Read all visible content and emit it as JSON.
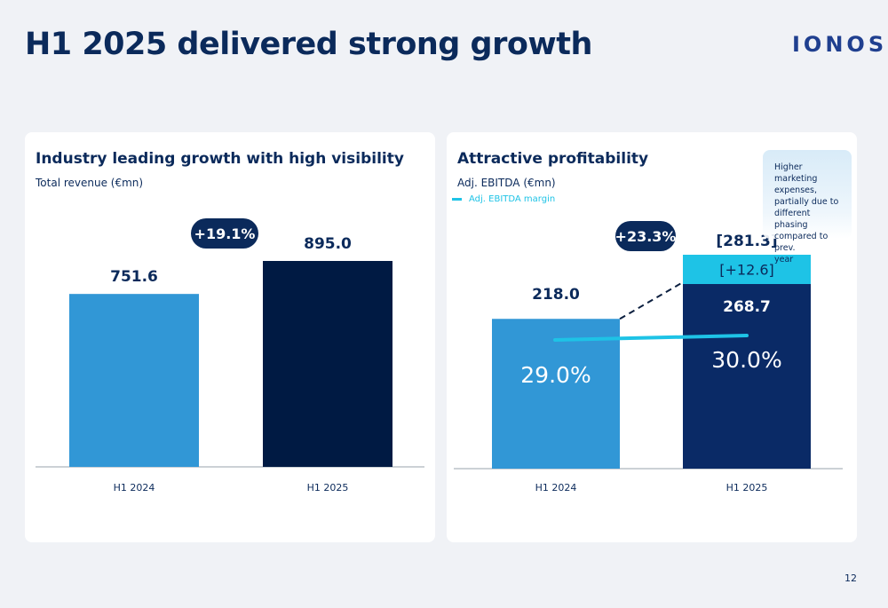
{
  "slide": {
    "title": "H1 2025 delivered strong growth",
    "logo": "IONOS",
    "page_number": "12"
  },
  "colors": {
    "background": "#f0f2f6",
    "bar_light": "#3197d6",
    "bar_dark": "#001a43",
    "bar_navy": "#0a2a66",
    "accent_cyan": "#1ec3e6",
    "pill": "#0b2a5b"
  },
  "chart_data": [
    {
      "type": "bar",
      "title": "Industry leading growth with high visibility",
      "subtitle": "Total revenue (€mn)",
      "categories": [
        "H1 2024",
        "H1 2025"
      ],
      "values": [
        751.6,
        895.0
      ],
      "value_labels": [
        "751.6",
        "895.0"
      ],
      "growth_label": "+19.1%",
      "ylim": [
        0,
        1100
      ],
      "grid": false
    },
    {
      "type": "bar",
      "title": "Attractive profitability",
      "subtitle": "Adj. EBITDA (€mn)",
      "categories": [
        "H1 2024",
        "H1 2025"
      ],
      "values": [
        218.0,
        268.7
      ],
      "value_labels": [
        "218.0",
        "268.7"
      ],
      "adjustment": {
        "value": 12.6,
        "label": "[+12.6]",
        "total": 281.3,
        "total_label": "[281.3]"
      },
      "growth_label": "+23.3%",
      "margin_series": {
        "name": "Adj. EBITDA margin",
        "values": [
          29.0,
          30.0
        ],
        "labels": [
          "29.0%",
          "30.0%"
        ]
      },
      "note": "Higher marketing expenses, partially due to different phasing compared to prev. year",
      "ylim": [
        0,
        340
      ],
      "grid": false
    }
  ]
}
